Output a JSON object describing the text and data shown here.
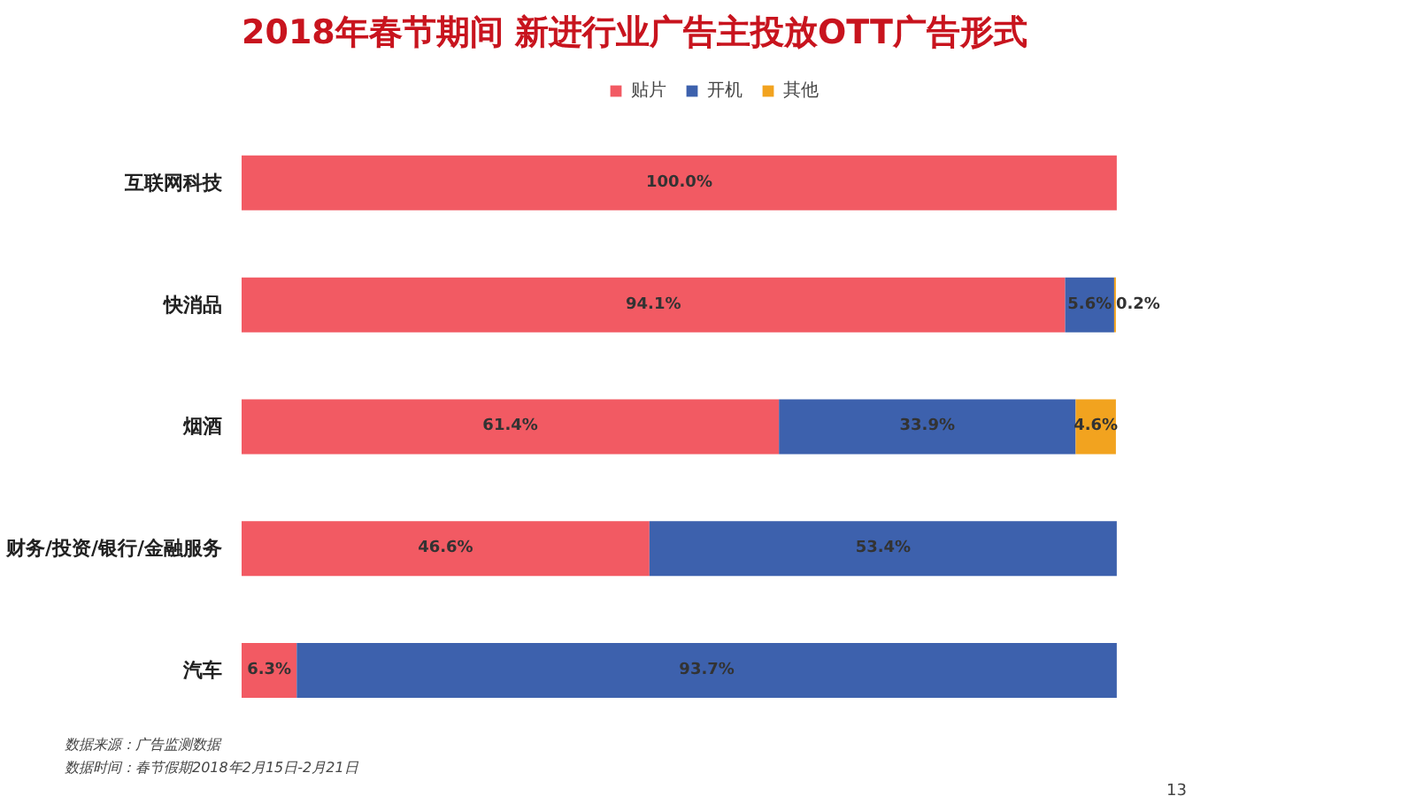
{
  "chart_data": {
    "type": "bar",
    "orientation": "horizontal",
    "stacked": true,
    "title": "2018年春节期间 新进行业广告主投放OTT广告形式",
    "categories": [
      "互联网科技",
      "快消品",
      "烟酒",
      "财务/投资/银行/金融服务",
      "汽车"
    ],
    "series": [
      {
        "name": "贴片",
        "color": "#f25a63",
        "values": [
          100.0,
          94.1,
          61.4,
          46.6,
          6.3
        ],
        "value_labels": [
          "100.0%",
          "94.1%",
          "61.4%",
          "46.6%",
          "6.3%"
        ]
      },
      {
        "name": "开机",
        "color": "#3d61ad",
        "values": [
          null,
          5.6,
          33.9,
          53.4,
          93.7
        ],
        "value_labels": [
          null,
          "5.6%",
          "33.9%",
          "53.4%",
          "93.7%"
        ]
      },
      {
        "name": "其他",
        "color": "#f2a31f",
        "values": [
          null,
          0.2,
          4.6,
          null,
          null
        ],
        "value_labels": [
          null,
          "0.2%",
          "4.6%",
          null,
          null
        ]
      }
    ],
    "legend": "top",
    "tick_labels": "y",
    "grid": false,
    "annotations": [
      "数据来源：广告监测数据",
      "数据时间：春节假期2018年2月15日-2月21日",
      "13"
    ]
  }
}
